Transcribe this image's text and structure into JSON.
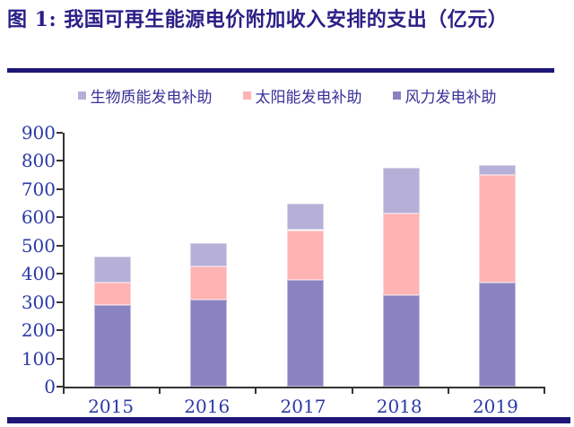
{
  "figure": {
    "title": "图 1:  我国可再生能源电价附加收入安排的支出（亿元）"
  },
  "legend": [
    {
      "label": "生物质能发电补助",
      "color": "#b6b0d8"
    },
    {
      "label": "太阳能发电补助",
      "color": "#ffb3b3"
    },
    {
      "label": "风力发电补助",
      "color": "#8b83c1"
    }
  ],
  "chart_data": {
    "type": "bar",
    "stacked": true,
    "title": "我国可再生能源电价附加收入安排的支出",
    "unit": "亿元",
    "categories": [
      "2015",
      "2016",
      "2017",
      "2018",
      "2019"
    ],
    "series": [
      {
        "name": "风力发电补助",
        "color": "#8b83c1",
        "values": [
          290,
          310,
          380,
          325,
          370
        ]
      },
      {
        "name": "太阳能发电补助",
        "color": "#ffb3b3",
        "values": [
          80,
          115,
          175,
          290,
          380
        ]
      },
      {
        "name": "生物质能发电补助",
        "color": "#b6b0d8",
        "values": [
          90,
          85,
          95,
          160,
          35
        ]
      }
    ],
    "totals": [
      460,
      510,
      650,
      775,
      785
    ],
    "xlabel": "",
    "ylabel": "",
    "ylim": [
      0,
      900
    ],
    "ytick_interval": 100,
    "ytick_labels": [
      "0",
      "100",
      "200",
      "300",
      "400",
      "500",
      "600",
      "700",
      "800",
      "900"
    ],
    "grid": false,
    "legend_position": "top"
  },
  "colors": {
    "title_text": "#291f86",
    "rule_navy": "#1d1677",
    "axis_line": "#333333",
    "tick_label_blue": "#2b3aa6",
    "legend_text": "#363198",
    "background": "#ffffff"
  }
}
